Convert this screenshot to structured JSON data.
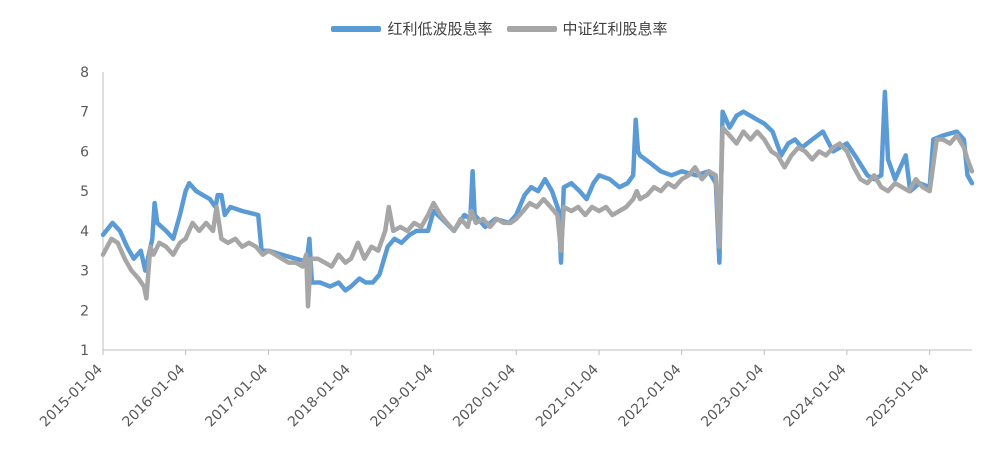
{
  "chart_data": {
    "type": "line",
    "title": "",
    "xlabel": "",
    "ylabel": "",
    "ylim": [
      1,
      8
    ],
    "yticks": [
      1,
      2,
      3,
      4,
      5,
      6,
      7,
      8
    ],
    "xlim": [
      "2015-01-04",
      "2025-07-10"
    ],
    "xtick_labels": [
      "2015-01-04",
      "2016-01-04",
      "2017-01-04",
      "2018-01-04",
      "2019-01-04",
      "2020-01-04",
      "2021-01-04",
      "2022-01-04",
      "2023-01-04",
      "2024-01-04",
      "2025-01-04"
    ],
    "grid": false,
    "legend_position": "top-center",
    "series": [
      {
        "name": "红利低波股息率",
        "color": "#5b9bd5",
        "points": [
          [
            "2015-01-04",
            3.9
          ],
          [
            "2015-02-15",
            4.2
          ],
          [
            "2015-03-20",
            4.0
          ],
          [
            "2015-04-20",
            3.6
          ],
          [
            "2015-05-20",
            3.3
          ],
          [
            "2015-06-20",
            3.5
          ],
          [
            "2015-07-10",
            3.0
          ],
          [
            "2015-08-10",
            3.8
          ],
          [
            "2015-08-20",
            4.7
          ],
          [
            "2015-09-01",
            4.2
          ],
          [
            "2015-10-10",
            4.0
          ],
          [
            "2015-11-10",
            3.8
          ],
          [
            "2015-12-10",
            4.4
          ],
          [
            "2016-01-04",
            5.0
          ],
          [
            "2016-01-20",
            5.2
          ],
          [
            "2016-02-20",
            5.0
          ],
          [
            "2016-03-20",
            4.9
          ],
          [
            "2016-04-20",
            4.8
          ],
          [
            "2016-05-15",
            4.6
          ],
          [
            "2016-05-25",
            4.9
          ],
          [
            "2016-06-10",
            4.9
          ],
          [
            "2016-06-25",
            4.4
          ],
          [
            "2016-07-20",
            4.6
          ],
          [
            "2016-09-10",
            4.5
          ],
          [
            "2016-11-20",
            4.4
          ],
          [
            "2016-12-05",
            3.5
          ],
          [
            "2017-01-04",
            3.5
          ],
          [
            "2017-03-04",
            3.4
          ],
          [
            "2017-05-04",
            3.3
          ],
          [
            "2017-06-04",
            3.25
          ],
          [
            "2017-06-20",
            3.1
          ],
          [
            "2017-07-04",
            3.8
          ],
          [
            "2017-07-15",
            2.7
          ],
          [
            "2017-08-20",
            2.7
          ],
          [
            "2017-10-04",
            2.6
          ],
          [
            "2017-11-10",
            2.7
          ],
          [
            "2017-12-10",
            2.5
          ],
          [
            "2018-01-04",
            2.6
          ],
          [
            "2018-02-10",
            2.8
          ],
          [
            "2018-03-10",
            2.7
          ],
          [
            "2018-04-10",
            2.7
          ],
          [
            "2018-05-10",
            2.9
          ],
          [
            "2018-06-15",
            3.6
          ],
          [
            "2018-07-15",
            3.8
          ],
          [
            "2018-08-15",
            3.7
          ],
          [
            "2018-09-20",
            3.9
          ],
          [
            "2018-10-20",
            4.0
          ],
          [
            "2018-12-10",
            4.0
          ],
          [
            "2019-01-04",
            4.5
          ],
          [
            "2019-02-10",
            4.3
          ],
          [
            "2019-04-04",
            4.0
          ],
          [
            "2019-05-20",
            4.4
          ],
          [
            "2019-06-15",
            4.3
          ],
          [
            "2019-06-25",
            5.5
          ],
          [
            "2019-07-04",
            4.4
          ],
          [
            "2019-08-20",
            4.1
          ],
          [
            "2019-10-04",
            4.3
          ],
          [
            "2019-12-04",
            4.2
          ],
          [
            "2020-01-04",
            4.4
          ],
          [
            "2020-02-10",
            4.9
          ],
          [
            "2020-03-10",
            5.1
          ],
          [
            "2020-04-10",
            5.0
          ],
          [
            "2020-05-10",
            5.3
          ],
          [
            "2020-06-10",
            5.0
          ],
          [
            "2020-07-10",
            4.5
          ],
          [
            "2020-07-20",
            3.2
          ],
          [
            "2020-08-01",
            5.1
          ],
          [
            "2020-09-04",
            5.2
          ],
          [
            "2020-10-10",
            5.0
          ],
          [
            "2020-11-10",
            4.8
          ],
          [
            "2020-12-10",
            5.2
          ],
          [
            "2021-01-04",
            5.4
          ],
          [
            "2021-02-20",
            5.3
          ],
          [
            "2021-04-04",
            5.1
          ],
          [
            "2021-05-10",
            5.2
          ],
          [
            "2021-06-04",
            5.4
          ],
          [
            "2021-06-15",
            6.8
          ],
          [
            "2021-06-25",
            6.0
          ],
          [
            "2021-07-04",
            5.9
          ],
          [
            "2021-08-20",
            5.7
          ],
          [
            "2021-10-04",
            5.5
          ],
          [
            "2021-11-20",
            5.4
          ],
          [
            "2022-01-04",
            5.5
          ],
          [
            "2022-03-10",
            5.4
          ],
          [
            "2022-05-04",
            5.5
          ],
          [
            "2022-06-04",
            5.2
          ],
          [
            "2022-06-20",
            3.2
          ],
          [
            "2022-07-04",
            7.0
          ],
          [
            "2022-08-04",
            6.6
          ],
          [
            "2022-09-04",
            6.9
          ],
          [
            "2022-10-04",
            7.0
          ],
          [
            "2022-12-04",
            6.8
          ],
          [
            "2023-01-04",
            6.7
          ],
          [
            "2023-02-10",
            6.5
          ],
          [
            "2023-03-20",
            5.9
          ],
          [
            "2023-04-20",
            6.2
          ],
          [
            "2023-05-20",
            6.3
          ],
          [
            "2023-06-20",
            6.1
          ],
          [
            "2023-08-04",
            6.3
          ],
          [
            "2023-09-20",
            6.5
          ],
          [
            "2023-11-04",
            6.0
          ],
          [
            "2024-01-04",
            6.2
          ],
          [
            "2024-02-20",
            5.8
          ],
          [
            "2024-04-04",
            5.4
          ],
          [
            "2024-05-04",
            5.3
          ],
          [
            "2024-06-04",
            5.4
          ],
          [
            "2024-06-20",
            7.5
          ],
          [
            "2024-07-04",
            5.8
          ],
          [
            "2024-08-04",
            5.3
          ],
          [
            "2024-09-20",
            5.9
          ],
          [
            "2024-10-10",
            5.0
          ],
          [
            "2024-11-20",
            5.2
          ],
          [
            "2025-01-04",
            5.1
          ],
          [
            "2025-01-20",
            6.3
          ],
          [
            "2025-03-04",
            6.4
          ],
          [
            "2025-05-04",
            6.5
          ],
          [
            "2025-06-04",
            6.3
          ],
          [
            "2025-06-20",
            5.4
          ],
          [
            "2025-07-10",
            5.2
          ]
        ]
      },
      {
        "name": "中证红利股息率",
        "color": "#a6a6a6",
        "points": [
          [
            "2015-01-04",
            3.4
          ],
          [
            "2015-02-10",
            3.8
          ],
          [
            "2015-03-10",
            3.7
          ],
          [
            "2015-04-10",
            3.3
          ],
          [
            "2015-05-10",
            3.0
          ],
          [
            "2015-06-10",
            2.8
          ],
          [
            "2015-07-04",
            2.6
          ],
          [
            "2015-07-15",
            2.3
          ],
          [
            "2015-08-01",
            3.6
          ],
          [
            "2015-08-15",
            3.4
          ],
          [
            "2015-09-10",
            3.7
          ],
          [
            "2015-10-10",
            3.6
          ],
          [
            "2015-11-10",
            3.4
          ],
          [
            "2015-12-10",
            3.7
          ],
          [
            "2016-01-04",
            3.8
          ],
          [
            "2016-02-04",
            4.2
          ],
          [
            "2016-03-04",
            4.0
          ],
          [
            "2016-04-04",
            4.2
          ],
          [
            "2016-05-04",
            4.0
          ],
          [
            "2016-05-20",
            4.6
          ],
          [
            "2016-06-10",
            3.8
          ],
          [
            "2016-07-10",
            3.7
          ],
          [
            "2016-08-10",
            3.8
          ],
          [
            "2016-09-10",
            3.6
          ],
          [
            "2016-10-10",
            3.7
          ],
          [
            "2016-11-10",
            3.6
          ],
          [
            "2016-12-10",
            3.4
          ],
          [
            "2017-01-04",
            3.5
          ],
          [
            "2017-02-04",
            3.4
          ],
          [
            "2017-03-04",
            3.3
          ],
          [
            "2017-04-04",
            3.2
          ],
          [
            "2017-05-04",
            3.2
          ],
          [
            "2017-06-04",
            3.1
          ],
          [
            "2017-06-20",
            3.4
          ],
          [
            "2017-06-28",
            2.1
          ],
          [
            "2017-07-10",
            3.3
          ],
          [
            "2017-08-10",
            3.3
          ],
          [
            "2017-09-10",
            3.2
          ],
          [
            "2017-10-10",
            3.1
          ],
          [
            "2017-11-10",
            3.4
          ],
          [
            "2017-12-10",
            3.2
          ],
          [
            "2018-01-04",
            3.3
          ],
          [
            "2018-02-04",
            3.7
          ],
          [
            "2018-03-04",
            3.3
          ],
          [
            "2018-04-04",
            3.6
          ],
          [
            "2018-05-04",
            3.5
          ],
          [
            "2018-06-04",
            4.0
          ],
          [
            "2018-06-20",
            4.6
          ],
          [
            "2018-07-10",
            4.0
          ],
          [
            "2018-08-10",
            4.1
          ],
          [
            "2018-09-10",
            4.0
          ],
          [
            "2018-10-10",
            4.2
          ],
          [
            "2018-11-10",
            4.1
          ],
          [
            "2018-12-10",
            4.4
          ],
          [
            "2019-01-04",
            4.7
          ],
          [
            "2019-02-04",
            4.4
          ],
          [
            "2019-03-04",
            4.2
          ],
          [
            "2019-04-04",
            4.0
          ],
          [
            "2019-05-04",
            4.3
          ],
          [
            "2019-06-04",
            4.1
          ],
          [
            "2019-06-20",
            4.5
          ],
          [
            "2019-07-10",
            4.2
          ],
          [
            "2019-08-10",
            4.3
          ],
          [
            "2019-09-10",
            4.1
          ],
          [
            "2019-10-10",
            4.3
          ],
          [
            "2019-11-10",
            4.2
          ],
          [
            "2019-12-10",
            4.2
          ],
          [
            "2020-01-04",
            4.3
          ],
          [
            "2020-02-04",
            4.5
          ],
          [
            "2020-03-04",
            4.7
          ],
          [
            "2020-04-04",
            4.6
          ],
          [
            "2020-05-04",
            4.8
          ],
          [
            "2020-06-04",
            4.6
          ],
          [
            "2020-07-04",
            4.4
          ],
          [
            "2020-07-20",
            3.5
          ],
          [
            "2020-08-01",
            4.6
          ],
          [
            "2020-09-04",
            4.5
          ],
          [
            "2020-10-04",
            4.6
          ],
          [
            "2020-11-04",
            4.4
          ],
          [
            "2020-12-04",
            4.6
          ],
          [
            "2021-01-04",
            4.5
          ],
          [
            "2021-02-04",
            4.6
          ],
          [
            "2021-03-04",
            4.4
          ],
          [
            "2021-04-04",
            4.5
          ],
          [
            "2021-05-04",
            4.6
          ],
          [
            "2021-06-04",
            4.8
          ],
          [
            "2021-06-20",
            5.0
          ],
          [
            "2021-07-04",
            4.8
          ],
          [
            "2021-08-04",
            4.9
          ],
          [
            "2021-09-04",
            5.1
          ],
          [
            "2021-10-04",
            5.0
          ],
          [
            "2021-11-04",
            5.2
          ],
          [
            "2021-12-04",
            5.1
          ],
          [
            "2022-01-04",
            5.3
          ],
          [
            "2022-02-04",
            5.4
          ],
          [
            "2022-03-04",
            5.6
          ],
          [
            "2022-04-04",
            5.3
          ],
          [
            "2022-05-04",
            5.5
          ],
          [
            "2022-06-04",
            5.4
          ],
          [
            "2022-06-20",
            3.6
          ],
          [
            "2022-07-04",
            6.6
          ],
          [
            "2022-08-04",
            6.4
          ],
          [
            "2022-09-04",
            6.2
          ],
          [
            "2022-10-04",
            6.5
          ],
          [
            "2022-11-04",
            6.3
          ],
          [
            "2022-12-04",
            6.5
          ],
          [
            "2023-01-04",
            6.3
          ],
          [
            "2023-02-04",
            6.0
          ],
          [
            "2023-03-04",
            5.9
          ],
          [
            "2023-04-04",
            5.6
          ],
          [
            "2023-05-04",
            5.9
          ],
          [
            "2023-06-04",
            6.1
          ],
          [
            "2023-07-04",
            6.0
          ],
          [
            "2023-08-04",
            5.8
          ],
          [
            "2023-09-04",
            6.0
          ],
          [
            "2023-10-04",
            5.9
          ],
          [
            "2023-11-04",
            6.1
          ],
          [
            "2023-12-04",
            6.2
          ],
          [
            "2024-01-04",
            6.0
          ],
          [
            "2024-02-04",
            5.6
          ],
          [
            "2024-03-04",
            5.3
          ],
          [
            "2024-04-04",
            5.2
          ],
          [
            "2024-05-04",
            5.4
          ],
          [
            "2024-06-04",
            5.1
          ],
          [
            "2024-07-04",
            5.0
          ],
          [
            "2024-08-04",
            5.2
          ],
          [
            "2024-09-04",
            5.1
          ],
          [
            "2024-10-04",
            5.0
          ],
          [
            "2024-11-04",
            5.3
          ],
          [
            "2024-12-04",
            5.1
          ],
          [
            "2025-01-04",
            5.0
          ],
          [
            "2025-02-04",
            6.3
          ],
          [
            "2025-03-04",
            6.3
          ],
          [
            "2025-04-04",
            6.2
          ],
          [
            "2025-05-04",
            6.4
          ],
          [
            "2025-06-04",
            6.1
          ],
          [
            "2025-06-20",
            5.8
          ],
          [
            "2025-07-10",
            5.5
          ]
        ]
      }
    ]
  }
}
